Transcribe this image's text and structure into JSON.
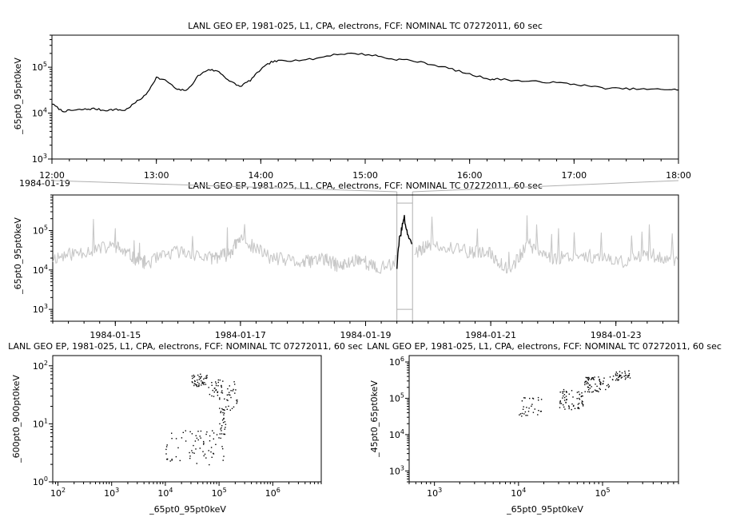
{
  "colors": {
    "foreground": "#000000",
    "context_line": "#c8c8c8",
    "frame": "#000000",
    "connector": "#b0b0b0"
  },
  "chart_data": [
    {
      "id": "top",
      "type": "line",
      "title": "LANL GEO EP, 1981-025, L1, CPA, electrons, FCF: NOMINAL TC 07272011, 60 sec",
      "xlabel": "",
      "ylabel": "_65pt0_95pt0keV",
      "y_scale": "log",
      "ylim": [
        1000,
        500000
      ],
      "xlim": [
        "12:00",
        "18:00"
      ],
      "x_tick_labels": [
        "12:00",
        "13:00",
        "14:00",
        "15:00",
        "16:00",
        "17:00",
        "18:00"
      ],
      "x_date_label": "1984-01-19",
      "grid": false,
      "series": [
        {
          "x": [
            "12:00",
            "12:06",
            "12:12",
            "12:18",
            "12:24",
            "12:30",
            "12:36",
            "12:42",
            "12:48",
            "12:54",
            "13:00",
            "13:06",
            "13:12",
            "13:18",
            "13:24",
            "13:30",
            "13:36",
            "13:42",
            "13:48",
            "13:54",
            "14:00",
            "14:06",
            "14:12",
            "14:18",
            "14:30",
            "14:42",
            "14:54",
            "15:06",
            "15:15",
            "15:24",
            "15:36",
            "15:48",
            "16:00",
            "16:12",
            "16:18",
            "16:30",
            "16:42",
            "16:54",
            "17:06",
            "17:18",
            "17:30",
            "17:42",
            "17:54",
            "18:00"
          ],
          "y": [
            16000,
            11000,
            11500,
            12000,
            12500,
            11500,
            12000,
            11500,
            17000,
            25000,
            60000,
            50000,
            32000,
            32000,
            65000,
            90000,
            80000,
            50000,
            38000,
            52000,
            90000,
            130000,
            140000,
            140000,
            150000,
            190000,
            200000,
            180000,
            150000,
            145000,
            120000,
            95000,
            70000,
            55000,
            55000,
            50000,
            48000,
            45000,
            40000,
            35000,
            34000,
            33000,
            33000,
            32000
          ]
        }
      ]
    },
    {
      "id": "middle",
      "type": "line",
      "title": "LANL GEO EP, 1981-025, L1, CPA, electrons, FCF: NOMINAL TC 07272011, 60 sec",
      "xlabel": "",
      "ylabel": "_65pt0_95pt0keV",
      "y_scale": "log",
      "ylim": [
        500,
        800000
      ],
      "xlim": [
        "1984-01-14",
        "1984-01-24"
      ],
      "x_tick_labels": [
        "1984-01-15",
        "1984-01-17",
        "1984-01-19",
        "1984-01-21",
        "1984-01-23"
      ],
      "grid": false,
      "highlight_range": [
        "1984-01-19T12:00",
        "1984-01-19T18:00"
      ],
      "series": [
        {
          "name": "context",
          "x": [
            "1984-01-14",
            "1984-01-14.5",
            "1984-01-15",
            "1984-01-15.3",
            "1984-01-15.5",
            "1984-01-16",
            "1984-01-16.5",
            "1984-01-16.8",
            "1984-01-17",
            "1984-01-17.5",
            "1984-01-18",
            "1984-01-18.3",
            "1984-01-18.6",
            "1984-01-18.9",
            "1984-01-19.2",
            "1984-01-19.8",
            "1984-01-20",
            "1984-01-20.6",
            "1984-01-21",
            "1984-01-21.3",
            "1984-01-21.6",
            "1984-01-22",
            "1984-01-22.5",
            "1984-01-23",
            "1984-01-23.5",
            "1984-01-24"
          ],
          "y": [
            20000,
            30000,
            40000,
            20000,
            15000,
            30000,
            20000,
            25000,
            60000,
            20000,
            15000,
            20000,
            12000,
            20000,
            10000,
            30000,
            40000,
            30000,
            25000,
            10000,
            45000,
            20000,
            25000,
            15000,
            25000,
            18000
          ]
        },
        {
          "name": "selected",
          "x": [
            "1984-01-19.50",
            "1984-01-19.54",
            "1984-01-19.58",
            "1984-01-19.62",
            "1984-01-19.66",
            "1984-01-19.70",
            "1984-01-19.75"
          ],
          "y": [
            12000,
            60000,
            120000,
            200000,
            100000,
            60000,
            32000
          ]
        }
      ]
    },
    {
      "id": "bottom-left",
      "type": "scatter",
      "title": "LANL GEO EP, 1981-025, L1, CPA, electrons, FCF: NOMINAL TC 07272011, 60 sec",
      "xlabel": "_65pt0_95pt0keV",
      "ylabel": "_600pt0_900pt0keV",
      "x_scale": "log",
      "y_scale": "log",
      "xlim": [
        80,
        8000000
      ],
      "ylim": [
        1,
        150
      ],
      "grid": false,
      "clusters": [
        {
          "x_range": [
            30000,
            60000
          ],
          "y_range": [
            45,
            75
          ],
          "n": 45
        },
        {
          "x_range": [
            60000,
            200000
          ],
          "y_range": [
            30,
            60
          ],
          "n": 35
        },
        {
          "x_range": [
            100000,
            220000
          ],
          "y_range": [
            15,
            40
          ],
          "n": 30
        },
        {
          "x_range": [
            100000,
            130000
          ],
          "y_range": [
            6,
            18
          ],
          "n": 20
        },
        {
          "x_range": [
            10000,
            120000
          ],
          "y_range": [
            2,
            8
          ],
          "n": 70
        }
      ]
    },
    {
      "id": "bottom-right",
      "type": "scatter",
      "title": "LANL GEO EP, 1981-025, L1, CPA, electrons, FCF: NOMINAL TC 07272011, 60 sec",
      "xlabel": "_65pt0_95pt0keV",
      "ylabel": "_45pt0_65pt0keV",
      "x_scale": "log",
      "y_scale": "log",
      "xlim": [
        500,
        800000
      ],
      "ylim": [
        500,
        1500000
      ],
      "grid": false,
      "clusters": [
        {
          "x_range": [
            10000,
            20000
          ],
          "y_range": [
            30000,
            120000
          ],
          "n": 30
        },
        {
          "x_range": [
            30000,
            60000
          ],
          "y_range": [
            50000,
            180000
          ],
          "n": 60
        },
        {
          "x_range": [
            60000,
            120000
          ],
          "y_range": [
            150000,
            400000
          ],
          "n": 60
        },
        {
          "x_range": [
            120000,
            210000
          ],
          "y_range": [
            300000,
            600000
          ],
          "n": 40
        }
      ]
    }
  ]
}
